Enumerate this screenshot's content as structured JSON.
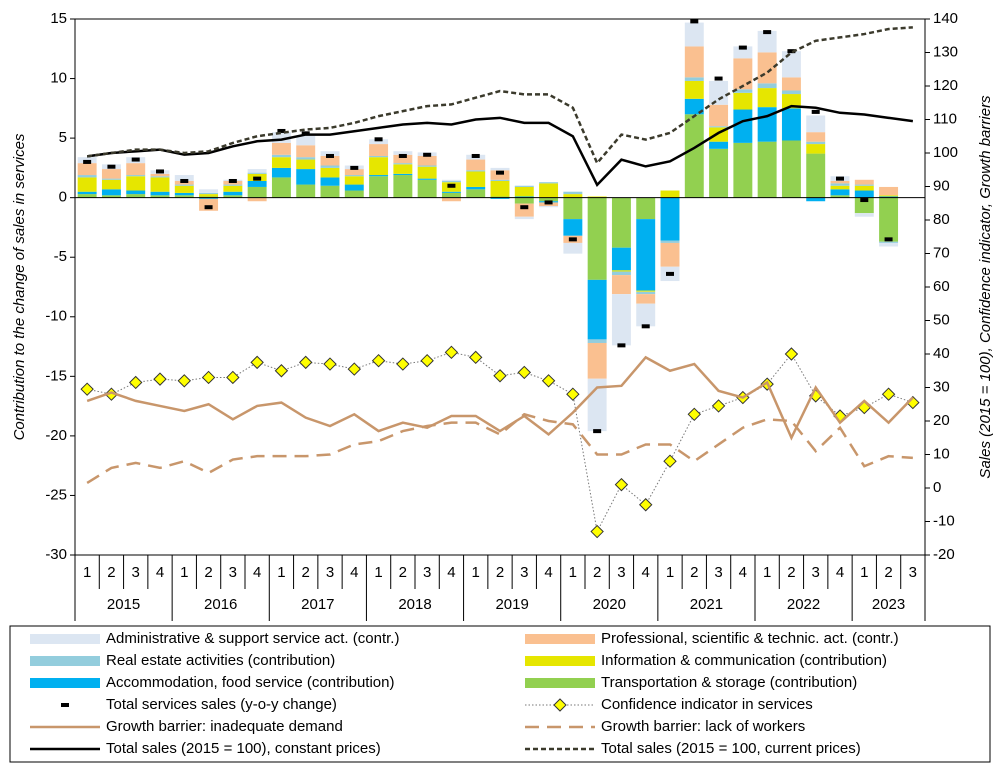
{
  "chart_data": {
    "type": "combo",
    "ylabel": "Contribution to the change of sales in services",
    "y2label": "Sales (2015 = 100), Confidence indicator, Growth barriers",
    "categories": [
      "1",
      "2",
      "3",
      "4",
      "1",
      "2",
      "3",
      "4",
      "1",
      "2",
      "3",
      "4",
      "1",
      "2",
      "3",
      "4",
      "1",
      "2",
      "3",
      "4",
      "1",
      "2",
      "3",
      "4",
      "1",
      "2",
      "3",
      "4",
      "1",
      "2",
      "3",
      "4",
      "1",
      "2",
      "3"
    ],
    "years": [
      "2015",
      null,
      null,
      null,
      "2016",
      null,
      null,
      null,
      "2017",
      null,
      null,
      null,
      "2018",
      null,
      null,
      null,
      "2019",
      null,
      null,
      null,
      "2020",
      null,
      null,
      null,
      "2021",
      null,
      null,
      null,
      "2022",
      null,
      null,
      null,
      "2023",
      null,
      null
    ],
    "ylim": [
      -30,
      15
    ],
    "yticks": [
      -30,
      -25,
      -20,
      -15,
      -10,
      -5,
      0,
      5,
      10,
      15
    ],
    "y2lim": [
      -20,
      140
    ],
    "y2ticks": [
      -20,
      -10,
      0,
      10,
      20,
      30,
      40,
      50,
      60,
      70,
      80,
      90,
      100,
      110,
      120,
      130,
      140
    ],
    "series": [
      {
        "name": "Administrative & support service act. (contr.)",
        "kind": "bar",
        "color": "#dce6f2",
        "values": [
          0.5,
          0.4,
          0.5,
          0.3,
          0.5,
          0.3,
          0.1,
          0.3,
          0.9,
          0.8,
          0.4,
          0.3,
          0.4,
          0.3,
          0.3,
          0.1,
          0.4,
          0.2,
          -0.2,
          -0.1,
          -0.9,
          -4.4,
          -4.3,
          -1.9,
          -1.2,
          2.0,
          2.0,
          1.0,
          1.8,
          2.2,
          1.4,
          0.4,
          -0.3,
          -0.3,
          null
        ]
      },
      {
        "name": "Professional, scientific & technic. act. (contr.)",
        "kind": "bar",
        "color": "#fac090",
        "values": [
          1.0,
          0.8,
          1.0,
          0.2,
          0.3,
          -1.0,
          0.3,
          -0.3,
          1.0,
          1.0,
          0.8,
          0.5,
          1.0,
          0.7,
          0.8,
          -0.3,
          0.9,
          0.8,
          -1.1,
          -0.3,
          -0.6,
          -3.0,
          -1.6,
          -0.8,
          -2.0,
          2.6,
          1.8,
          2.6,
          2.6,
          1.1,
          0.8,
          0.2,
          0.4,
          0.7,
          null
        ]
      },
      {
        "name": "Real estate activities (contribution)",
        "kind": "bar",
        "color": "#93cddd",
        "values": [
          0.2,
          0.1,
          0.1,
          0.1,
          0.1,
          0.1,
          0.1,
          0.1,
          0.2,
          0.2,
          0.2,
          0.1,
          0.1,
          0.1,
          0.1,
          0.1,
          0.1,
          0.1,
          0.1,
          0.1,
          0.2,
          -0.3,
          -0.3,
          -0.2,
          -0.2,
          0.3,
          0.1,
          0.3,
          0.4,
          0.3,
          0.2,
          0.2,
          0.1,
          -0.1,
          null
        ]
      },
      {
        "name": "Information & communication (contribution)",
        "kind": "bar",
        "color": "#e6e600",
        "values": [
          1.2,
          0.8,
          1.2,
          1.2,
          0.6,
          0.2,
          0.5,
          0.6,
          0.9,
          0.8,
          0.8,
          0.7,
          1.5,
          0.8,
          1.0,
          0.8,
          1.3,
          1.3,
          0.8,
          1.2,
          0.3,
          0.1,
          -0.1,
          -0.1,
          0.6,
          1.5,
          1.2,
          1.4,
          1.6,
          1.2,
          0.8,
          0.3,
          0.4,
          0.1,
          null
        ]
      },
      {
        "name": "Accommodation, food service (contribution)",
        "kind": "bar",
        "color": "#00b0f0",
        "values": [
          0.2,
          0.5,
          0.3,
          0.3,
          0.2,
          -0.1,
          0.3,
          0.5,
          0.8,
          1.3,
          0.7,
          0.5,
          0.1,
          0.1,
          0.1,
          0.1,
          0.2,
          -0.1,
          0.1,
          -0.1,
          -1.4,
          -5.0,
          -1.9,
          -6.0,
          -3.6,
          1.3,
          0.6,
          2.8,
          2.9,
          2.7,
          -0.3,
          0.5,
          0.6,
          0.1,
          null
        ]
      },
      {
        "name": "Transportation & storage (contribution)",
        "kind": "bar",
        "color": "#92d050",
        "values": [
          0.3,
          0.2,
          0.3,
          0.2,
          0.2,
          0.1,
          0.2,
          0.9,
          1.7,
          1.1,
          1.0,
          0.6,
          1.8,
          1.9,
          1.5,
          0.4,
          0.7,
          0.1,
          -0.5,
          -0.3,
          -1.8,
          -6.9,
          -4.2,
          -1.8,
          0,
          7.0,
          4.1,
          4.6,
          4.7,
          4.8,
          3.7,
          0.2,
          -1.3,
          -3.7,
          null
        ]
      },
      {
        "name": "Total services sales (y-o-y change)",
        "kind": "marker",
        "color": "#000000",
        "values": [
          3.0,
          2.6,
          3.2,
          2.2,
          1.4,
          -0.8,
          1.4,
          1.6,
          5.6,
          5.4,
          3.5,
          2.5,
          4.9,
          3.5,
          3.6,
          1.0,
          3.5,
          2.1,
          -0.8,
          -0.4,
          -3.5,
          -19.6,
          -12.4,
          -10.8,
          -6.4,
          14.8,
          10.0,
          12.6,
          13.9,
          12.3,
          7.2,
          1.6,
          -0.2,
          -3.5,
          null
        ]
      },
      {
        "name": "Confidence indicator in services",
        "kind": "diamond",
        "axis": "y2",
        "color": "#ffff00",
        "values": [
          29.5,
          28,
          31.5,
          32.5,
          32,
          33,
          33,
          37.5,
          35,
          37.5,
          37,
          35.5,
          38,
          37,
          38,
          40.5,
          39,
          33.5,
          34.5,
          32,
          28,
          -13,
          1,
          -5,
          8,
          22,
          24.5,
          27,
          31,
          40,
          27.5,
          21.5,
          24,
          28,
          25.5
        ]
      },
      {
        "name": "Growth barrier: inadequate demand",
        "kind": "line",
        "axis": "y2",
        "color": "#c8966b",
        "dash": "solid",
        "values": [
          26,
          28.5,
          26,
          24.5,
          23,
          25,
          20.5,
          24.5,
          25.5,
          21,
          18.5,
          22,
          17,
          19.5,
          18,
          21.5,
          21.5,
          17,
          21.5,
          16,
          22.5,
          30,
          30.5,
          39,
          35,
          37,
          29,
          27,
          31.5,
          15,
          30,
          19.5,
          26,
          19.5,
          27
        ]
      },
      {
        "name": "Growth barrier: lack of workers",
        "kind": "line",
        "axis": "y2",
        "color": "#c8966b",
        "dash": "long",
        "values": [
          1.5,
          6,
          7.5,
          6,
          8,
          4.5,
          8.5,
          9.5,
          9.5,
          9.5,
          10,
          13,
          14,
          17,
          18.5,
          19.5,
          19.5,
          16,
          22,
          20,
          19,
          10,
          10,
          13,
          13,
          8,
          13,
          18,
          20.5,
          20,
          11,
          18,
          6.5,
          9.5,
          9
        ]
      },
      {
        "name": "Total sales (2015 = 100), constant prices)",
        "kind": "line",
        "axis": "y2",
        "color": "#000000",
        "dash": "solid",
        "values": [
          99,
          100,
          100.5,
          101,
          99.5,
          100,
          102,
          103.5,
          104,
          105.5,
          105.5,
          106.5,
          107.5,
          108.5,
          109,
          108.5,
          110,
          110.5,
          109,
          109,
          105,
          90.5,
          98,
          96,
          97.5,
          101.5,
          106,
          109.5,
          111,
          114,
          113.5,
          112,
          111.5,
          110.5,
          109.5
        ]
      },
      {
        "name": "Total sales (2015 = 100, current prices)",
        "kind": "line",
        "axis": "y2",
        "color": "#3b3a2c",
        "dash": "short",
        "values": [
          99,
          100,
          101,
          101,
          100,
          100.5,
          103,
          105,
          106,
          107,
          107.5,
          109,
          111,
          112.5,
          114,
          114.5,
          116.5,
          118.5,
          117.5,
          117.5,
          113.5,
          97,
          105.5,
          104,
          106,
          111,
          116,
          120,
          124,
          130,
          133.5,
          134.5,
          135.5,
          137,
          137.5
        ]
      }
    ]
  }
}
